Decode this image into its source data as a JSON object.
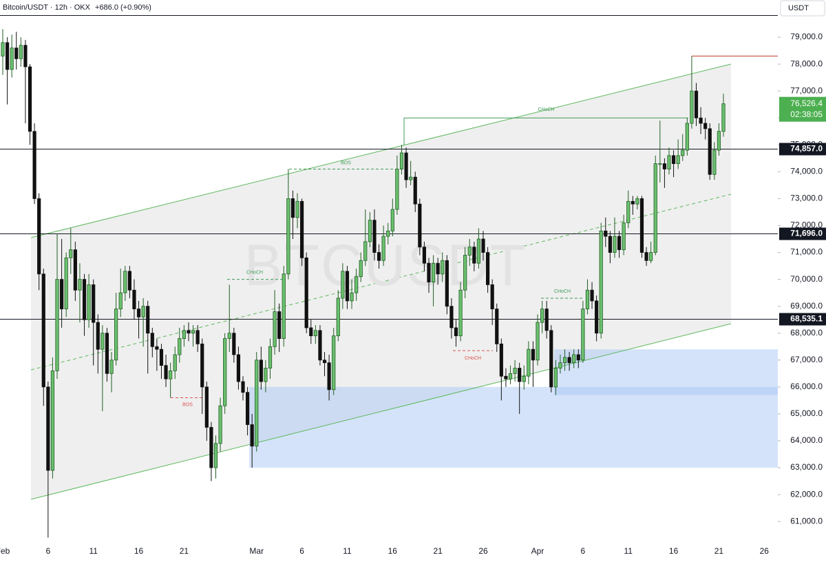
{
  "chart_data": {
    "type": "candlestick",
    "title": "Bitcoin/USDT · 12h · OKX",
    "change": "+686.0 (+0.90%)",
    "currency": "USDT",
    "watermark": "BTCUSDT",
    "up_color": "#6cbf6f",
    "up_border": "#1e5e22",
    "down_color": "#111111",
    "ylim": [
      60160,
      79820
    ],
    "yticks": [
      {
        "value": 61000,
        "label": "61,000.0"
      },
      {
        "value": 62000,
        "label": "62,000.0"
      },
      {
        "value": 63000,
        "label": "63,000.0"
      },
      {
        "value": 64000,
        "label": "64,000.0"
      },
      {
        "value": 65000,
        "label": "65,000.0"
      },
      {
        "value": 66000,
        "label": "66,000.0"
      },
      {
        "value": 67000,
        "label": "67,000.0"
      },
      {
        "value": 68000,
        "label": "68,000.0"
      },
      {
        "value": 69000,
        "label": "69,000.0"
      },
      {
        "value": 70000,
        "label": "70,000.0"
      },
      {
        "value": 71000,
        "label": "71,000.0"
      },
      {
        "value": 72000,
        "label": "72,000.0"
      },
      {
        "value": 73000,
        "label": "73,000.0"
      },
      {
        "value": 74000,
        "label": "74,000.0"
      },
      {
        "value": 75000,
        "label": "75,000.0"
      },
      {
        "value": 76000,
        "label": "76,000.0"
      },
      {
        "value": 77000,
        "label": "77,000.0"
      },
      {
        "value": 78000,
        "label": "78,000.0"
      },
      {
        "value": 79000,
        "label": "79,000.0"
      }
    ],
    "levels": [
      {
        "value": 74857.0,
        "label": "74,857.0"
      },
      {
        "value": 71696.0,
        "label": "71,696.0"
      },
      {
        "value": 68535.1,
        "label": "68,535.1"
      }
    ],
    "last_price_label": "76,526.4",
    "countdown": "02:38:05",
    "last_color": "#4caf50",
    "high_line_color": "#c0392b",
    "zones": [
      {
        "low": 63000,
        "high": 66000
      },
      {
        "low": 65700,
        "high": 67400
      }
    ],
    "zone_color": "#a9c8f5",
    "annotations": [
      {
        "text": "BOS",
        "level": 74100,
        "color": "#3d9a55"
      },
      {
        "text": "CHoCH",
        "level": 76000,
        "color": "#3d9a55"
      },
      {
        "text": "CHoCH",
        "level": 70000,
        "color": "#3d9a55"
      },
      {
        "text": "CHoCH",
        "level": 69300,
        "color": "#3d9a55"
      },
      {
        "text": "BOS",
        "level": 65600,
        "color": "#d9534f"
      },
      {
        "text": "CHoCH",
        "level": 67350,
        "color": "#d9534f"
      }
    ],
    "categories": [
      "Feb",
      null,
      null,
      null,
      null,
      null,
      null,
      null,
      null,
      null,
      "6",
      null,
      null,
      null,
      null,
      null,
      null,
      null,
      null,
      null,
      "11",
      null,
      null,
      null,
      null,
      null,
      null,
      null,
      null,
      null,
      "16",
      null,
      null,
      null,
      null,
      null,
      null,
      null,
      null,
      null,
      "21",
      null,
      null,
      null,
      null,
      null,
      null,
      null,
      null,
      null,
      null,
      null,
      null,
      null,
      null,
      null,
      "Mar",
      null,
      null,
      null,
      null,
      null,
      null,
      null,
      null,
      null,
      "6",
      null,
      null,
      null,
      null,
      null,
      null,
      null,
      null,
      null,
      "11",
      null,
      null,
      null,
      null,
      null,
      null,
      null,
      null,
      null,
      "16",
      null,
      null,
      null,
      null,
      null,
      null,
      null,
      null,
      null,
      "21",
      null,
      null,
      null,
      null,
      null,
      null,
      null,
      null,
      null,
      "26",
      null,
      null,
      null,
      null,
      null,
      null,
      null,
      null,
      null,
      null,
      null,
      "Apr",
      null,
      null,
      null,
      null,
      null,
      null,
      null,
      null,
      null,
      "6",
      null,
      null,
      null,
      null,
      null,
      null,
      null,
      null,
      null,
      "11",
      null,
      null,
      null,
      null,
      null,
      null,
      null,
      null,
      null,
      "16",
      null,
      null,
      null,
      null,
      null,
      null,
      null,
      null,
      null,
      "21",
      null,
      null,
      null,
      null,
      null,
      null,
      null,
      null,
      null,
      "26",
      null
    ],
    "open": [
      78300,
      78800,
      77800,
      78600,
      78200,
      78700,
      77900,
      75500,
      73000,
      70200,
      66000,
      62900,
      66600,
      70000,
      68900,
      70800,
      71100,
      69600,
      70000,
      68500,
      69800,
      68400,
      67400,
      68000,
      66500,
      67000,
      68900,
      69500,
      70300,
      69600,
      68900,
      68600,
      69000,
      68000,
      67500,
      67400,
      66800,
      66300,
      66600,
      67200,
      67800,
      68100,
      68000,
      68100,
      67600,
      66000,
      64500,
      63000,
      63900,
      65300,
      67800,
      68000,
      67200,
      66200,
      65800,
      64600,
      63800,
      67000,
      66200,
      66700,
      67500,
      68800,
      67800,
      70200,
      73000,
      72300,
      72900,
      70800,
      68200,
      67900,
      68100,
      67000,
      66900,
      65900,
      67900,
      69300,
      70300,
      69200,
      69500,
      70100,
      70700,
      71400,
      72200,
      71000,
      70700,
      71600,
      71800,
      72600,
      74100,
      74700,
      73700,
      73800,
      72800,
      71200,
      70600,
      69900,
      70600,
      70200,
      70700,
      69000,
      68200,
      67900,
      69600,
      70900,
      71200,
      70600,
      71500,
      71000,
      69800,
      68900,
      67600,
      66400,
      66300,
      66500,
      66700,
      66200,
      66400,
      67400,
      67000,
      68400,
      68900,
      68100,
      66000,
      66700,
      66900,
      67100,
      66900,
      67200,
      67000,
      68900,
      69600,
      69200,
      68000,
      71800,
      71600,
      71000,
      71600,
      71100,
      72100,
      72900,
      72800,
      73000,
      71000,
      70700,
      71000,
      74300,
      74300,
      74100,
      74600,
      74300,
      74600,
      74800,
      75800,
      77000,
      76000,
      75800,
      75600,
      73900,
      74800,
      75500,
      null,
      null,
      null,
      null,
      null,
      null,
      null,
      null,
      null,
      null
    ],
    "high": [
      79300,
      79000,
      79100,
      79200,
      79000,
      78900,
      78000,
      75800,
      73200,
      70400,
      66200,
      67100,
      71700,
      71500,
      71000,
      71900,
      71400,
      70600,
      70200,
      70200,
      70000,
      68700,
      68300,
      68200,
      67300,
      69500,
      70400,
      70500,
      70500,
      70000,
      69200,
      69300,
      69200,
      68200,
      67800,
      67600,
      67200,
      66900,
      67500,
      68200,
      68300,
      68400,
      68300,
      68300,
      67800,
      66200,
      64700,
      64200,
      65600,
      68000,
      69800,
      68200,
      67500,
      66400,
      66000,
      65000,
      67300,
      67500,
      67000,
      67800,
      69600,
      69100,
      70500,
      74100,
      73300,
      73200,
      73000,
      71000,
      68500,
      68300,
      68300,
      67300,
      67200,
      68200,
      69600,
      70600,
      70500,
      70000,
      70400,
      71000,
      72600,
      72500,
      72600,
      71300,
      72000,
      72100,
      73000,
      74600,
      75000,
      74900,
      74400,
      74000,
      73000,
      71400,
      70800,
      70900,
      70800,
      71000,
      70900,
      69300,
      68500,
      69900,
      71200,
      71500,
      71400,
      71900,
      71800,
      71200,
      70000,
      69100,
      67800,
      66700,
      66800,
      67000,
      66900,
      66800,
      67700,
      67700,
      68700,
      69200,
      69200,
      68300,
      67000,
      67200,
      67400,
      67300,
      67400,
      67400,
      69200,
      70000,
      69900,
      69400,
      72100,
      72300,
      71800,
      72300,
      71800,
      72400,
      73300,
      73100,
      73100,
      73100,
      71200,
      71400,
      74600,
      75900,
      74500,
      74900,
      74800,
      75200,
      75400,
      76000,
      78300,
      77300,
      76400,
      76000,
      75800,
      75100,
      75800,
      76900,
      null,
      null,
      null,
      null,
      null,
      null,
      null,
      null,
      null,
      null
    ],
    "low": [
      77600,
      76500,
      77500,
      77800,
      77900,
      75800,
      75000,
      72800,
      69600,
      65300,
      60400,
      62600,
      66300,
      68200,
      68600,
      70200,
      69200,
      68400,
      67900,
      68200,
      66800,
      66500,
      65100,
      66200,
      65800,
      66800,
      68600,
      69200,
      69300,
      68500,
      67800,
      67500,
      66500,
      67100,
      66600,
      66300,
      66000,
      65600,
      66300,
      66900,
      67500,
      67700,
      67500,
      67300,
      65000,
      64000,
      62500,
      62600,
      63600,
      65000,
      67300,
      66900,
      65900,
      65500,
      64200,
      63000,
      63600,
      65900,
      65800,
      66300,
      67200,
      67300,
      67500,
      70000,
      71500,
      71900,
      70500,
      68000,
      67600,
      67600,
      66800,
      66400,
      65500,
      65700,
      67700,
      68900,
      68900,
      68900,
      69200,
      69900,
      70500,
      71200,
      70700,
      70400,
      70500,
      71300,
      71600,
      72400,
      73900,
      73400,
      73500,
      72500,
      70900,
      70300,
      69500,
      69000,
      69800,
      69900,
      68700,
      67800,
      67500,
      67700,
      69300,
      70500,
      70300,
      70400,
      70700,
      69500,
      68300,
      67300,
      65500,
      66000,
      66100,
      66200,
      65000,
      65900,
      66100,
      66000,
      66800,
      68000,
      67800,
      65800,
      65700,
      66500,
      66600,
      66600,
      66700,
      66700,
      66900,
      68700,
      68900,
      67700,
      67800,
      71200,
      70600,
      70800,
      70800,
      70900,
      71900,
      72400,
      72600,
      70800,
      70500,
      70600,
      70900,
      73600,
      73400,
      73900,
      73800,
      74100,
      74400,
      74600,
      75600,
      75700,
      75400,
      75200,
      73700,
      73700,
      74600,
      75300,
      null,
      null,
      null,
      null,
      null,
      null,
      null,
      null,
      null,
      null
    ],
    "close": [
      78800,
      77800,
      78600,
      78200,
      78700,
      77900,
      75500,
      73000,
      70200,
      66000,
      62900,
      66600,
      70000,
      68900,
      70800,
      71100,
      69600,
      70000,
      68500,
      69800,
      68400,
      67400,
      68000,
      66500,
      67000,
      68900,
      69500,
      70300,
      69600,
      68900,
      68600,
      69000,
      68000,
      67500,
      67400,
      66800,
      66300,
      66600,
      67200,
      67800,
      68100,
      68000,
      68100,
      67600,
      66000,
      64500,
      63000,
      63900,
      65300,
      67800,
      68000,
      67200,
      66200,
      65800,
      64600,
      63800,
      67000,
      66200,
      66700,
      67500,
      68800,
      67800,
      70200,
      73000,
      72300,
      72900,
      70800,
      68200,
      67900,
      68100,
      67000,
      66900,
      65900,
      67900,
      69300,
      70300,
      69200,
      69500,
      70100,
      70700,
      71400,
      72200,
      71000,
      70700,
      71600,
      71800,
      72600,
      74100,
      74700,
      73700,
      73800,
      72800,
      71200,
      70600,
      69900,
      70600,
      70200,
      70700,
      69000,
      68200,
      67900,
      69600,
      70900,
      71200,
      70600,
      71500,
      71000,
      69800,
      68900,
      67600,
      66400,
      66300,
      66500,
      66700,
      66200,
      66400,
      67400,
      67000,
      68400,
      68900,
      68100,
      66000,
      66700,
      66900,
      67100,
      66900,
      67200,
      67000,
      68900,
      69600,
      69200,
      68000,
      71800,
      71600,
      71000,
      71600,
      71100,
      72100,
      72900,
      72800,
      73000,
      71000,
      70700,
      71000,
      74300,
      74300,
      74100,
      74600,
      74300,
      74600,
      74800,
      75800,
      77000,
      76000,
      75800,
      75600,
      73900,
      74800,
      75500,
      76526.4,
      null,
      null,
      null,
      null,
      null,
      null,
      null,
      null,
      null,
      null
    ]
  }
}
